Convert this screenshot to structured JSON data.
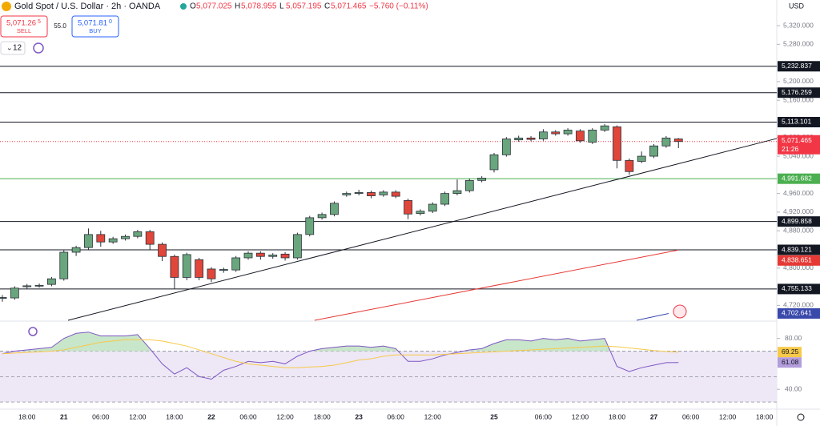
{
  "chart_data": {
    "type": "candlestick",
    "title": "Gold Spot / U.S. Dollar · 2h · OANDA",
    "header": {
      "ohlc_labels": [
        "O",
        "H",
        "L",
        "C"
      ],
      "ohlc_values": [
        "5,077.025",
        "5,078.955",
        "5,057.195",
        "5,071.465"
      ],
      "change": "−5.760 (−0.11%)",
      "sell": {
        "price": "5,071.26",
        "pip": "5",
        "label": "SELL"
      },
      "spread": "55.0",
      "buy": {
        "price": "5,071.81",
        "pip": "0",
        "label": "BUY"
      },
      "indicators": "12"
    },
    "currency": "USD",
    "categories": [
      null,
      null,
      "18:00",
      null,
      null,
      "21",
      null,
      null,
      "06:00",
      null,
      null,
      "12:00",
      null,
      null,
      "18:00",
      null,
      null,
      "22",
      null,
      null,
      "06:00",
      null,
      null,
      "12:00",
      null,
      null,
      "18:00",
      null,
      null,
      "23",
      null,
      null,
      "06:00",
      null,
      null,
      "12:00",
      null,
      null,
      null,
      null,
      "25",
      null,
      null,
      null,
      "06:00",
      null,
      null,
      "12:00",
      null,
      null,
      "18:00",
      null,
      null,
      "27",
      null,
      null,
      "06:00",
      null,
      null,
      "12:00",
      null,
      null,
      "18:00"
    ],
    "open": [
      4735,
      4736,
      4760,
      4762,
      4765,
      4777,
      4834,
      4844,
      4872,
      4856,
      4863,
      4868,
      4878,
      4851,
      4825,
      4780,
      4818,
      4798,
      4795,
      4796,
      4822,
      4832,
      4825,
      4830,
      4822,
      4872,
      4908,
      4915,
      4957,
      4960,
      4962,
      4957,
      4963,
      4945,
      4917,
      4922,
      4937,
      4960,
      4966,
      4988,
      5011,
      5043,
      5075,
      5079,
      5077,
      5092,
      5088,
      5094,
      5070,
      5096,
      5103,
      5031,
      5029,
      5040,
      5062,
      5077.025,
      null,
      null,
      null,
      null,
      null,
      null,
      null
    ],
    "high": [
      4742,
      4761,
      4766,
      4767,
      4781,
      4838,
      4848,
      4885,
      4880,
      4867,
      4872,
      4882,
      4882,
      4855,
      4829,
      4833,
      4822,
      4802,
      4801,
      4826,
      4836,
      4836,
      4832,
      4834,
      4876,
      4912,
      4919,
      4943,
      4964,
      4968,
      4966,
      4967,
      4967,
      4949,
      4926,
      4941,
      4964,
      4990,
      4992,
      4997,
      5047,
      5081,
      5084,
      5083,
      5098,
      5096,
      5100,
      5098,
      5100,
      5109,
      5106,
      5035,
      5050,
      5066,
      5083,
      5078.955,
      null,
      null,
      null,
      null,
      null,
      null,
      null
    ],
    "low": [
      4728,
      4732,
      4756,
      4758,
      4761,
      4773,
      4826,
      4840,
      4846,
      4852,
      4859,
      4864,
      4840,
      4815,
      4755,
      4774,
      4774,
      4770,
      4790,
      4792,
      4818,
      4818,
      4820,
      4816,
      4818,
      4868,
      4904,
      4911,
      4953,
      4956,
      4950,
      4953,
      4950,
      4905,
      4913,
      4918,
      4933,
      4956,
      4962,
      4984,
      5005,
      5039,
      5071,
      5072,
      5073,
      5084,
      5084,
      5069,
      5066,
      5092,
      5014,
      5000,
      5025,
      5036,
      5058,
      5057.195,
      null,
      null,
      null,
      null,
      null,
      null,
      null
    ],
    "close": [
      4737,
      4757,
      4762,
      4763,
      4777,
      4834,
      4844,
      4872,
      4856,
      4863,
      4868,
      4878,
      4851,
      4825,
      4780,
      4829,
      4780,
      4777,
      4797,
      4822,
      4832,
      4825,
      4828,
      4822,
      4872,
      4908,
      4915,
      4939,
      4960,
      4962,
      4955,
      4963,
      4954,
      4916,
      4922,
      4937,
      4960,
      4966,
      4988,
      4993,
      5043,
      5077,
      5079,
      5076,
      5092,
      5088,
      5096,
      5073,
      5096,
      5105,
      5031,
      5007,
      5040,
      5062,
      5079,
      5071.465,
      null,
      null,
      null,
      null,
      null,
      null,
      null
    ],
    "up_color": "#6aa67d",
    "down_color": "#e0463a",
    "ylim": [
      4688,
      5375
    ],
    "yticks": [
      {
        "value": 5320,
        "label": "5,320.000"
      },
      {
        "value": 5280,
        "label": "5,280.000"
      },
      {
        "value": 5200,
        "label": "5,200.000"
      },
      {
        "value": 5160,
        "label": "5,160.000"
      },
      {
        "value": 5080,
        "label": "5,080.000"
      },
      {
        "value": 5040,
        "label": "5,040.000"
      },
      {
        "value": 4960,
        "label": "4,960.000"
      },
      {
        "value": 4920,
        "label": "4,920.000"
      },
      {
        "value": 4880,
        "label": "4,880.000"
      },
      {
        "value": 4800,
        "label": "4,800.000"
      },
      {
        "value": 4720,
        "label": "4,720.000"
      }
    ],
    "levels": [
      {
        "value": 5232.837,
        "label": "5,232.837",
        "color": "#131722"
      },
      {
        "value": 5176.259,
        "label": "5,176.259",
        "color": "#131722"
      },
      {
        "value": 5113.101,
        "label": "5,113.101",
        "color": "#131722"
      },
      {
        "value": 4991.682,
        "label": "4,991.682",
        "color": "#4caf50"
      },
      {
        "value": 4899.858,
        "label": "4,899.858",
        "color": "#131722"
      },
      {
        "value": 4839.121,
        "label": "4,839.121",
        "color": "#131722"
      },
      {
        "value": 4755.133,
        "label": "4,755.133",
        "color": "#131722"
      }
    ],
    "last": {
      "value": 5071.465,
      "label": "5,071.465",
      "countdown": "21:26",
      "color": "#f23645"
    },
    "trendline": {
      "x": [
        5.34,
        63
      ],
      "y": [
        4688,
        5078
      ],
      "color": "#131722"
    },
    "ma": {
      "x": [
        25.4,
        55
      ],
      "values": [
        4688,
        4838.651
      ],
      "label": "4,838.651",
      "color": "#e53935"
    },
    "line2": {
      "x": [
        51.6,
        54.2
      ],
      "values": [
        4688,
        4702.641
      ],
      "label": "4,702.641",
      "color": "#3949ab"
    },
    "rsi": {
      "values": [
        68,
        70,
        71,
        72,
        73,
        80,
        84,
        85,
        82,
        82,
        82,
        83,
        72,
        60,
        52,
        57,
        50,
        48,
        55,
        58,
        62,
        61,
        62,
        60,
        66,
        70,
        72,
        73,
        74,
        74,
        73,
        74,
        72,
        62,
        62,
        64,
        67,
        69,
        71,
        72,
        76,
        79,
        79,
        78,
        80,
        79,
        80,
        78,
        79,
        80,
        58,
        54,
        57,
        59,
        61,
        61.08,
        null,
        null,
        null,
        null,
        null,
        null,
        null
      ],
      "last_label": "61.08",
      "color": "#7e57c2",
      "ma_values": [
        68,
        68.5,
        69,
        69.5,
        70,
        71,
        73,
        75,
        77,
        78,
        79,
        79,
        79,
        78,
        76,
        74,
        71,
        68,
        65,
        62,
        60,
        59,
        58,
        57,
        57,
        57.5,
        58,
        59,
        61,
        63,
        64,
        66,
        67,
        67,
        67,
        67,
        67.5,
        68,
        68.5,
        69,
        69.5,
        70,
        70.5,
        71,
        71.5,
        72,
        72.5,
        73,
        73.5,
        74,
        73.5,
        72.5,
        71.5,
        70.5,
        69.8,
        69.25,
        null,
        null,
        null,
        null,
        null,
        null,
        null
      ],
      "ma_last_label": "69.25",
      "ma_color": "#f7c948",
      "ylim": [
        25,
        93
      ],
      "yticks": [
        {
          "value": 80,
          "label": "80.00"
        },
        {
          "value": 40,
          "label": "40.00"
        }
      ],
      "levels": [
        70,
        50,
        30
      ]
    }
  }
}
